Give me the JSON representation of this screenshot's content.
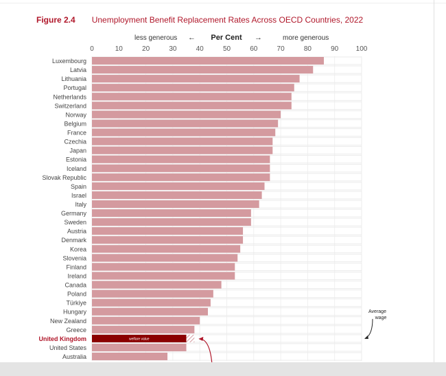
{
  "figure_label": "Figure 2.4",
  "chart_data": {
    "type": "bar",
    "title": "Unemployment Benefit Replacement Rates Across OECD Countries, 2022",
    "xlabel": "Per Cent",
    "less_label": "less generous",
    "more_label": "more generous",
    "left_arrow": "←",
    "right_arrow": "→",
    "xlim": [
      0,
      100
    ],
    "ticks": [
      0,
      10,
      20,
      30,
      40,
      50,
      60,
      70,
      80,
      90,
      100
    ],
    "categories": [
      "Luxembourg",
      "Latvia",
      "Lithuania",
      "Portugal",
      "Netherlands",
      "Switzerland",
      "Norway",
      "Belgium",
      "France",
      "Czechia",
      "Japan",
      "Estonia",
      "Iceland",
      "Slovak Republic",
      "Spain",
      "Israel",
      "Italy",
      "Germany",
      "Sweden",
      "Austria",
      "Denmark",
      "Korea",
      "Slovenia",
      "Finland",
      "Ireland",
      "Canada",
      "Poland",
      "Türkiye",
      "Hungary",
      "New Zealand",
      "Greece",
      "United Kingdom",
      "United States",
      "Australia"
    ],
    "values": [
      86,
      82,
      77,
      75,
      74,
      74,
      70,
      69,
      68,
      67,
      67,
      66,
      66,
      66,
      64,
      63,
      62,
      59,
      59,
      56,
      56,
      55,
      54,
      53,
      53,
      48,
      45,
      44,
      43,
      40,
      38,
      35,
      35,
      28
    ],
    "highlight": {
      "category": "United Kingdom",
      "welfare_value": 35,
      "total_value": 38,
      "bar_label": "welfare value"
    },
    "annotation": "Average wage",
    "colors": {
      "bar": "#d49a9f",
      "highlight": "#8b0000",
      "text_highlight": "#b0172a",
      "annotation": "#b0172a"
    }
  }
}
